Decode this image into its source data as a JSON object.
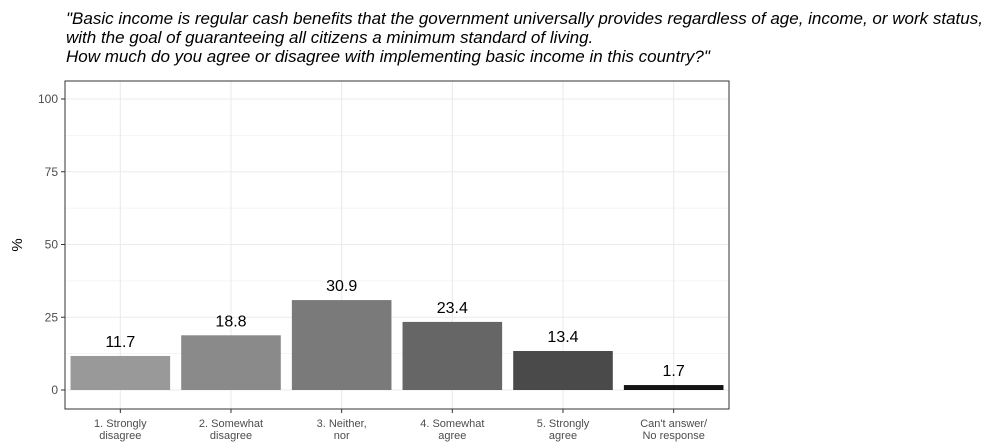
{
  "chart_data": {
    "type": "bar",
    "title": "\"Basic income is regular cash benefits that the government universally provides regardless of age, income, or work status, with the goal of guaranteeing all citizens a minimum standard of living.\n How much do you agree or disagree with implementing basic income in this country?\"",
    "xlabel": "",
    "ylabel": "%",
    "ylim": [
      0,
      100
    ],
    "yticks": [
      "0",
      "25",
      "50",
      "75",
      "100"
    ],
    "grid": true,
    "categories": [
      [
        "1. Strongly",
        "disagree"
      ],
      [
        "2. Somewhat",
        "disagree"
      ],
      [
        "3. Neither,",
        "nor"
      ],
      [
        "4. Somewhat",
        "agree"
      ],
      [
        "5. Strongly",
        "agree"
      ],
      [
        "Can't answer/",
        "No response"
      ]
    ],
    "values": [
      11.7,
      18.8,
      30.9,
      23.4,
      13.4,
      1.7
    ],
    "value_labels": [
      "11.7",
      "18.8",
      "30.9",
      "23.4",
      "13.4",
      "1.7"
    ],
    "colors": [
      "#999999",
      "#8a8a8a",
      "#7a7a7a",
      "#666666",
      "#4a4a4a",
      "#141414"
    ],
    "panel_border_color": "#333333",
    "gridline_color": "#ebebeb"
  }
}
